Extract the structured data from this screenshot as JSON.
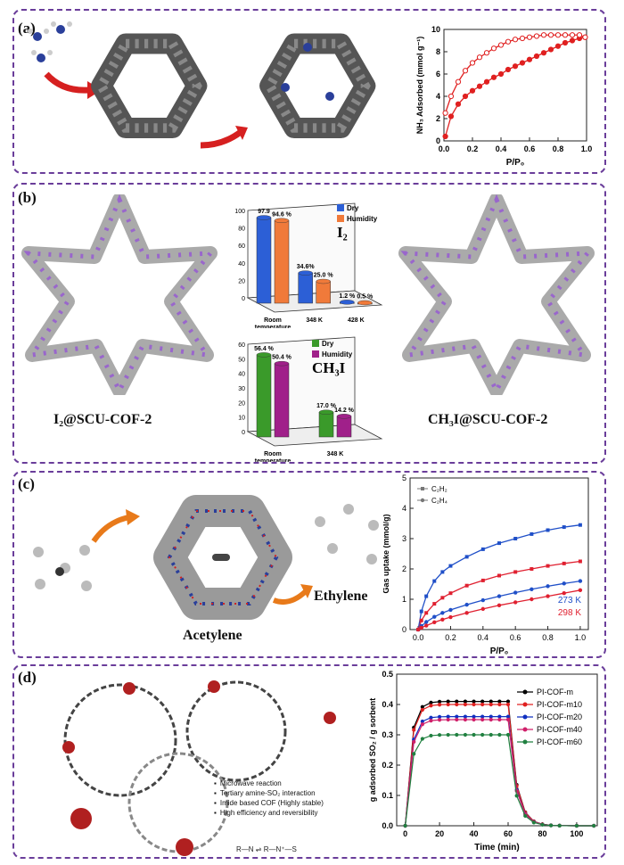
{
  "panels": {
    "a": {
      "label": "(a)",
      "chart": {
        "ylabel": "NH₃ Adsorbed (mmol g⁻¹)",
        "xlabel": "P/P₀",
        "xticks": [
          "0.0",
          "0.2",
          "0.4",
          "0.6",
          "0.8",
          "1.0"
        ],
        "yticks": [
          "0",
          "2",
          "4",
          "6",
          "8",
          "10"
        ]
      }
    },
    "b": {
      "label": "(b)",
      "left_caption": "I₂@SCU-COF-2",
      "right_caption": "CH₃I@SCU-COF-2",
      "i2_chart": {
        "title": "I₂",
        "legend": [
          "Dry",
          "Humidity"
        ],
        "categories": [
          "Room temperature",
          "348 K",
          "428 K"
        ],
        "dry_labels": [
          "97.9",
          "34.6%",
          "1.2 %"
        ],
        "hum_labels": [
          "94.6 %",
          "25.0 %",
          "0.5 %"
        ],
        "yticks": [
          "0",
          "20",
          "40",
          "60",
          "80",
          "100"
        ]
      },
      "ch3i_chart": {
        "title": "CH₃I",
        "legend": [
          "Dry",
          "Humidity"
        ],
        "categories": [
          "Room temperature",
          "348 K"
        ],
        "dry_labels": [
          "56.4 %",
          "17.0 %"
        ],
        "hum_labels": [
          "50.4 %",
          "14.2 %"
        ],
        "yticks": [
          "0",
          "10",
          "20",
          "30",
          "40",
          "50",
          "60"
        ]
      }
    },
    "c": {
      "label": "(c)",
      "acetylene": "Acetylene",
      "ethylene": "Ethylene",
      "chart": {
        "ylabel": "Gas uptake (mmol/g)",
        "xlabel": "P/P₀",
        "legend": [
          "C₂H₂",
          "C₂H₄"
        ],
        "temps": [
          "273 K",
          "298 K"
        ],
        "xticks": [
          "0.0",
          "0.2",
          "0.4",
          "0.6",
          "0.8",
          "1.0"
        ],
        "yticks": [
          "0",
          "1",
          "2",
          "3",
          "4",
          "5"
        ]
      }
    },
    "d": {
      "label": "(d)",
      "bullets": [
        "Microwave reaction",
        "Tertiary amine-SO₂ interaction",
        "Imide based COF (Highly stable)",
        "High efficiency and reversibility"
      ],
      "chart": {
        "ylabel": "g adsorbed SO₂ / g sorbent",
        "xlabel": "Time (min)",
        "legend": [
          "PI-COF-m",
          "PI-COF-m10",
          "PI-COF-m20",
          "PI-COF-m40",
          "PI-COF-m60"
        ],
        "xticks": [
          "0",
          "20",
          "40",
          "60",
          "80",
          "100"
        ],
        "yticks": [
          "0.0",
          "0.1",
          "0.2",
          "0.3",
          "0.4",
          "0.5"
        ]
      }
    }
  },
  "chart_data": [
    {
      "type": "line",
      "panel": "a",
      "xlabel": "P/P₀",
      "ylabel": "NH₃ Adsorbed (mmol g⁻¹)",
      "xlim": [
        0,
        1.0
      ],
      "ylim": [
        0,
        10
      ],
      "series": [
        {
          "name": "",
          "style": "filled",
          "x": [
            0.01,
            0.05,
            0.1,
            0.15,
            0.2,
            0.25,
            0.3,
            0.35,
            0.4,
            0.45,
            0.5,
            0.55,
            0.6,
            0.65,
            0.7,
            0.75,
            0.8,
            0.85,
            0.9,
            0.95,
            0.99
          ],
          "y": [
            0.4,
            2.2,
            3.3,
            4.0,
            4.5,
            4.9,
            5.3,
            5.7,
            6.0,
            6.4,
            6.7,
            7.0,
            7.3,
            7.6,
            7.9,
            8.2,
            8.5,
            8.8,
            9.0,
            9.2,
            9.3
          ]
        },
        {
          "name": "",
          "style": "open",
          "x": [
            0.01,
            0.05,
            0.1,
            0.15,
            0.2,
            0.25,
            0.3,
            0.35,
            0.4,
            0.45,
            0.5,
            0.55,
            0.6,
            0.65,
            0.7,
            0.75,
            0.8,
            0.85,
            0.9,
            0.95,
            0.99
          ],
          "y": [
            2.5,
            4.0,
            5.3,
            6.3,
            7.0,
            7.5,
            7.9,
            8.3,
            8.6,
            8.9,
            9.1,
            9.2,
            9.3,
            9.4,
            9.5,
            9.5,
            9.5,
            9.5,
            9.5,
            9.5,
            9.3
          ]
        }
      ]
    },
    {
      "type": "bar",
      "panel": "b",
      "title": "I₂",
      "categories": [
        "Room temperature",
        "348 K",
        "428 K"
      ],
      "ylim": [
        0,
        100
      ],
      "series": [
        {
          "name": "Dry",
          "values": [
            97.9,
            34.6,
            1.2
          ]
        },
        {
          "name": "Humidity",
          "values": [
            94.6,
            25.0,
            0.5
          ]
        }
      ]
    },
    {
      "type": "bar",
      "panel": "b",
      "title": "CH₃I",
      "categories": [
        "Room temperature",
        "348 K"
      ],
      "ylim": [
        0,
        60
      ],
      "series": [
        {
          "name": "Dry",
          "values": [
            56.4,
            17.0
          ]
        },
        {
          "name": "Humidity",
          "values": [
            50.4,
            14.2
          ]
        }
      ]
    },
    {
      "type": "line",
      "panel": "c",
      "xlabel": "P/P₀",
      "ylabel": "Gas uptake (mmol/g)",
      "xlim": [
        0,
        1.0
      ],
      "ylim": [
        0,
        5
      ],
      "series": [
        {
          "name": "C₂H₂ 273 K",
          "color": "#1f4fc8",
          "x": [
            0,
            0.02,
            0.05,
            0.1,
            0.15,
            0.2,
            0.3,
            0.4,
            0.5,
            0.6,
            0.7,
            0.8,
            0.9,
            1.0
          ],
          "y": [
            0,
            0.6,
            1.1,
            1.6,
            1.9,
            2.1,
            2.4,
            2.65,
            2.85,
            3.0,
            3.15,
            3.28,
            3.38,
            3.45
          ]
        },
        {
          "name": "C₂H₂ 298 K",
          "color": "#e02030",
          "x": [
            0,
            0.02,
            0.05,
            0.1,
            0.15,
            0.2,
            0.3,
            0.4,
            0.5,
            0.6,
            0.7,
            0.8,
            0.9,
            1.0
          ],
          "y": [
            0,
            0.3,
            0.55,
            0.85,
            1.05,
            1.2,
            1.45,
            1.62,
            1.78,
            1.9,
            2.0,
            2.1,
            2.18,
            2.25
          ]
        },
        {
          "name": "C₂H₄ 273 K",
          "color": "#1f4fc8",
          "x": [
            0,
            0.02,
            0.05,
            0.1,
            0.15,
            0.2,
            0.3,
            0.4,
            0.5,
            0.6,
            0.7,
            0.8,
            0.9,
            1.0
          ],
          "y": [
            0,
            0.12,
            0.25,
            0.42,
            0.55,
            0.65,
            0.82,
            0.97,
            1.1,
            1.22,
            1.33,
            1.43,
            1.52,
            1.6
          ]
        },
        {
          "name": "C₂H₄ 298 K",
          "color": "#e02030",
          "x": [
            0,
            0.02,
            0.05,
            0.1,
            0.15,
            0.2,
            0.3,
            0.4,
            0.5,
            0.6,
            0.7,
            0.8,
            0.9,
            1.0
          ],
          "y": [
            0,
            0.06,
            0.13,
            0.24,
            0.33,
            0.41,
            0.55,
            0.68,
            0.8,
            0.9,
            1.0,
            1.1,
            1.2,
            1.3
          ]
        }
      ]
    },
    {
      "type": "line",
      "panel": "d",
      "xlabel": "Time (min)",
      "ylabel": "g adsorbed SO₂ / g sorbent",
      "xlim": [
        -5,
        112
      ],
      "ylim": [
        0,
        0.5
      ],
      "series": [
        {
          "name": "PI-COF-m",
          "color": "#000000",
          "marker": "square",
          "plateau": 0.41
        },
        {
          "name": "PI-COF-m10",
          "color": "#e02020",
          "marker": "circle",
          "plateau": 0.4
        },
        {
          "name": "PI-COF-m20",
          "color": "#1030c0",
          "marker": "triangle",
          "plateau": 0.36
        },
        {
          "name": "PI-COF-m40",
          "color": "#d0206a",
          "marker": "tri-down",
          "plateau": 0.35
        },
        {
          "name": "PI-COF-m60",
          "color": "#208040",
          "marker": "diamond",
          "plateau": 0.3
        }
      ]
    }
  ]
}
